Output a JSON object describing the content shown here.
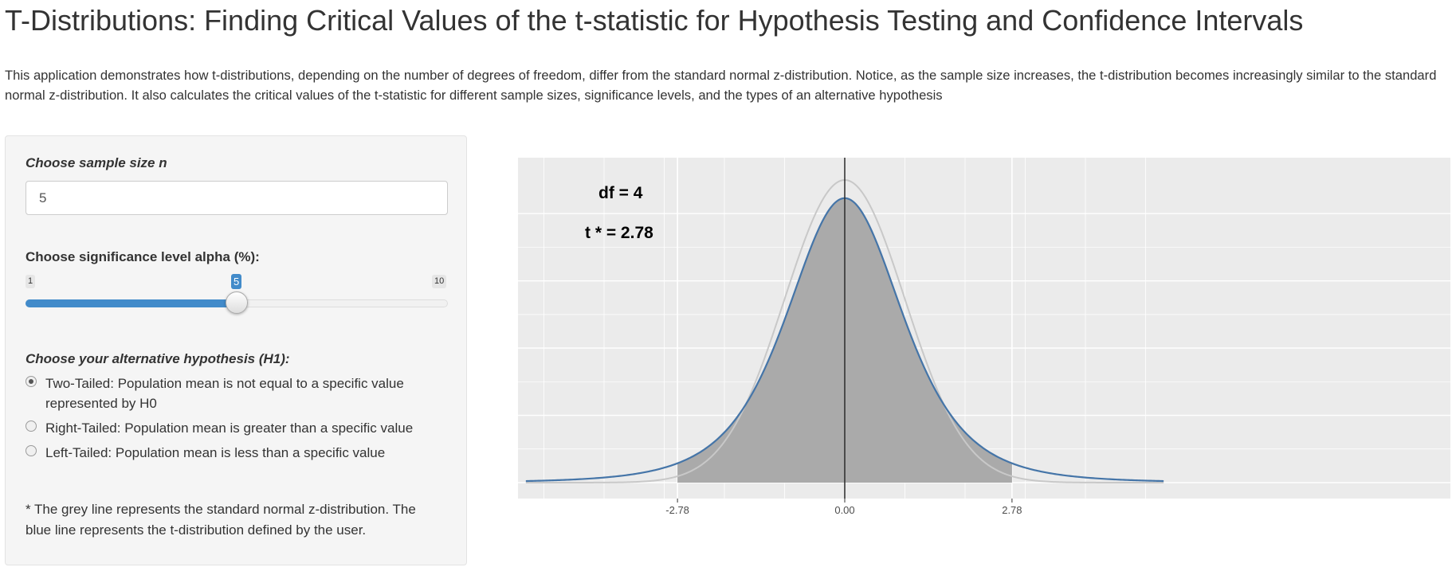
{
  "header": {
    "title": "T-Distributions: Finding Critical Values of the t-statistic for Hypothesis Testing and Confidence Intervals",
    "description": "This application demonstrates how t-distributions, depending on the number of degrees of freedom, differ from the standard normal z-distribution. Notice, as the sample size increases, the t-distribution becomes increasingly similar to the standard normal z-distribution. It also calculates the critical values of the t-statistic for different sample sizes, significance levels, and the types of an alternative hypothesis"
  },
  "sidebar": {
    "sample_label": "Choose sample size n",
    "sample_value": "5",
    "alpha_label": "Choose significance level alpha (%):",
    "alpha_min": "1",
    "alpha_max": "10",
    "alpha_value": "5",
    "alpha_fraction": 0.5,
    "h1_label": "Choose your alternative hypothesis (H1):",
    "h1_options": [
      {
        "label": "Two-Tailed: Population mean is not equal to a specific value represented by H0",
        "checked": true
      },
      {
        "label": "Right-Tailed: Population mean is greater than a specific value",
        "checked": false
      },
      {
        "label": "Left-Tailed: Population mean is less than a specific value",
        "checked": false
      }
    ],
    "note": "* The grey line represents the standard normal z-distribution. The blue line represents the t-distribution defined by the user."
  },
  "chart_data": {
    "type": "area",
    "df": 4,
    "critical_value": 2.78,
    "annotations": {
      "df_text": "df = 4",
      "t_text": "t * = 2.78"
    },
    "x_range": [
      -5.3,
      5.3
    ],
    "xticks": [
      {
        "value": -2.78,
        "label": "-2.78"
      },
      {
        "value": 0,
        "label": "0.00"
      },
      {
        "value": 2.78,
        "label": "2.78"
      }
    ],
    "series": [
      {
        "name": "t-distribution (df = 4)",
        "color": "#4575a8",
        "x_min": -5.3,
        "x_max": 5.3
      },
      {
        "name": "standard normal z-distribution",
        "color": "#c8c8c8",
        "x_min": -5.3,
        "x_max": 5.3
      }
    ],
    "shaded_region": [
      -2.78,
      2.78
    ],
    "shade_color": "#aaaaaa",
    "vline_x": 0,
    "grid": true,
    "panel_color": "#ebebeb"
  }
}
